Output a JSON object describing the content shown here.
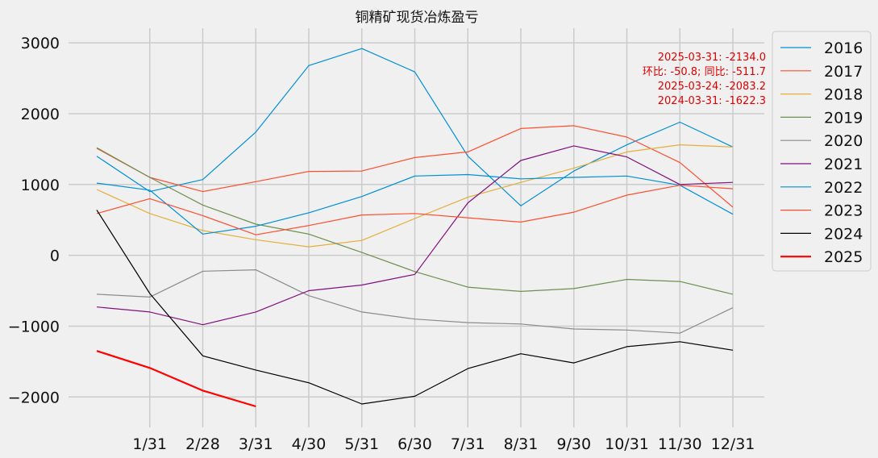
{
  "chart_data": {
    "type": "line",
    "title": "铜精矿现货冶炼盈亏",
    "x": [
      "1/31",
      "2/28",
      "3/31",
      "4/30",
      "5/31",
      "6/30",
      "7/31",
      "8/31",
      "9/30",
      "10/31",
      "11/30",
      "12/31"
    ],
    "ylim": [
      -2350,
      3150
    ],
    "yticks": [
      3000,
      2000,
      1000,
      0,
      -1000,
      -2000
    ],
    "ytick_labels": [
      "3000",
      "2000",
      "1000",
      "0",
      "−1000",
      "−2000"
    ],
    "grid": true,
    "legend_position": "upper-right-outside",
    "annotations": [
      "2025-03-31: -2134.0",
      "环比: -50.8; 同比: -511.7",
      "2025-03-24: -2083.2",
      "2024-03-31: -1622.3"
    ],
    "series": [
      {
        "name": "2016",
        "color": "#008fd5",
        "points": [
          [
            0,
            1400
          ],
          [
            1,
            900
          ],
          [
            2,
            1070
          ],
          [
            3,
            1740
          ],
          [
            4,
            2680
          ],
          [
            5,
            2920
          ],
          [
            6,
            2590
          ],
          [
            7,
            1400
          ],
          [
            8,
            700
          ],
          [
            9,
            1190
          ],
          [
            10,
            1560
          ],
          [
            11,
            1880
          ],
          [
            12,
            1530
          ]
        ]
      },
      {
        "name": "2017",
        "color": "#fc4f30",
        "points": [
          [
            0,
            1510
          ],
          [
            1,
            1100
          ],
          [
            2,
            900
          ],
          [
            3,
            1040
          ],
          [
            4,
            1185
          ],
          [
            5,
            1190
          ],
          [
            6,
            1380
          ],
          [
            7,
            1460
          ],
          [
            8,
            1790
          ],
          [
            9,
            1830
          ],
          [
            10,
            1670
          ],
          [
            11,
            1310
          ],
          [
            12,
            680
          ]
        ]
      },
      {
        "name": "2018",
        "color": "#e5ae38",
        "points": [
          [
            0,
            930
          ],
          [
            1,
            590
          ],
          [
            2,
            350
          ],
          [
            3,
            220
          ],
          [
            4,
            120
          ],
          [
            5,
            210
          ],
          [
            6,
            520
          ],
          [
            7,
            820
          ],
          [
            8,
            1030
          ],
          [
            9,
            1230
          ],
          [
            10,
            1460
          ],
          [
            11,
            1560
          ],
          [
            12,
            1530
          ]
        ]
      },
      {
        "name": "2019",
        "color": "#6d904f",
        "points": [
          [
            0,
            1520
          ],
          [
            1,
            1100
          ],
          [
            2,
            710
          ],
          [
            3,
            440
          ],
          [
            4,
            300
          ],
          [
            5,
            40
          ],
          [
            6,
            -230
          ],
          [
            7,
            -450
          ],
          [
            8,
            -510
          ],
          [
            9,
            -470
          ],
          [
            10,
            -340
          ],
          [
            11,
            -370
          ],
          [
            12,
            -550
          ]
        ]
      },
      {
        "name": "2020",
        "color": "#8b8b8b",
        "points": [
          [
            0,
            -550
          ],
          [
            1,
            -590
          ],
          [
            2,
            -225
          ],
          [
            3,
            -205
          ],
          [
            4,
            -570
          ],
          [
            5,
            -800
          ],
          [
            6,
            -900
          ],
          [
            7,
            -950
          ],
          [
            8,
            -970
          ],
          [
            9,
            -1040
          ],
          [
            10,
            -1055
          ],
          [
            11,
            -1100
          ],
          [
            12,
            -740
          ]
        ]
      },
      {
        "name": "2021",
        "color": "#810f7c",
        "points": [
          [
            0,
            -730
          ],
          [
            1,
            -800
          ],
          [
            2,
            -980
          ],
          [
            3,
            -800
          ],
          [
            4,
            -500
          ],
          [
            5,
            -420
          ],
          [
            6,
            -270
          ],
          [
            7,
            740
          ],
          [
            8,
            1340
          ],
          [
            9,
            1545
          ],
          [
            10,
            1390
          ],
          [
            11,
            1000
          ],
          [
            12,
            1030
          ]
        ]
      },
      {
        "name": "2022",
        "color": "#008fd5",
        "points": [
          [
            0,
            1020
          ],
          [
            1,
            920
          ],
          [
            2,
            300
          ],
          [
            3,
            410
          ],
          [
            4,
            600
          ],
          [
            5,
            830
          ],
          [
            6,
            1120
          ],
          [
            7,
            1140
          ],
          [
            8,
            1080
          ],
          [
            9,
            1100
          ],
          [
            10,
            1120
          ],
          [
            11,
            990
          ],
          [
            12,
            580
          ]
        ]
      },
      {
        "name": "2023",
        "color": "#fc4f30",
        "points": [
          [
            0,
            590
          ],
          [
            1,
            800
          ],
          [
            2,
            560
          ],
          [
            3,
            290
          ],
          [
            4,
            420
          ],
          [
            5,
            570
          ],
          [
            6,
            590
          ],
          [
            7,
            530
          ],
          [
            8,
            470
          ],
          [
            9,
            610
          ],
          [
            10,
            850
          ],
          [
            11,
            990
          ],
          [
            12,
            940
          ]
        ]
      },
      {
        "name": "2024",
        "color": "#000000",
        "points": [
          [
            0,
            640
          ],
          [
            1,
            -540
          ],
          [
            2,
            -1420
          ],
          [
            3,
            -1620
          ],
          [
            4,
            -1800
          ],
          [
            5,
            -2100
          ],
          [
            6,
            -1990
          ],
          [
            7,
            -1600
          ],
          [
            8,
            -1390
          ],
          [
            9,
            -1520
          ],
          [
            10,
            -1290
          ],
          [
            11,
            -1220
          ],
          [
            12,
            -1340
          ]
        ]
      },
      {
        "name": "2025",
        "color": "#ff0000",
        "points": [
          [
            0,
            -1350
          ],
          [
            1,
            -1590
          ],
          [
            2,
            -1910
          ],
          [
            3,
            -2134
          ]
        ]
      }
    ]
  }
}
